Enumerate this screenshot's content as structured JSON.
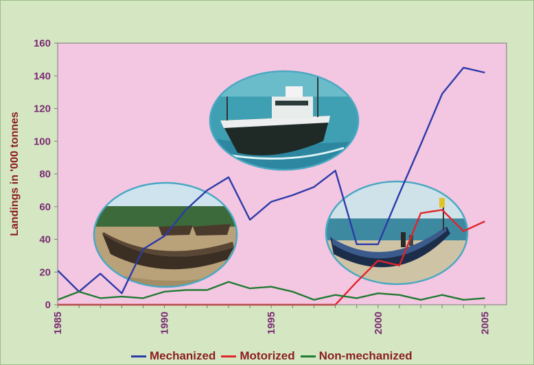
{
  "chart_data": {
    "type": "line",
    "ylabel": "Landings in '000 tonnes",
    "ylim": [
      0,
      160
    ],
    "yticks": [
      "0",
      "20",
      "40",
      "60",
      "80",
      "100",
      "120",
      "140",
      "160"
    ],
    "xlim": [
      1985,
      2005
    ],
    "xticks": [
      "1985",
      "1990",
      "1995",
      "2000",
      "2005"
    ],
    "legend_position": "bottom",
    "series": [
      {
        "name": "Mechanized",
        "color": "#2b3aa8",
        "x": [
          1985,
          1986,
          1987,
          1988,
          1989,
          1990,
          1991,
          1992,
          1993,
          1994,
          1995,
          1996,
          1997,
          1998,
          1999,
          2000,
          2001,
          2002,
          2003,
          2004,
          2005
        ],
        "y": [
          21,
          8,
          19,
          7,
          34,
          42,
          58,
          70,
          78,
          52,
          63,
          67,
          72,
          82,
          37,
          37,
          68,
          98,
          129,
          145,
          142
        ]
      },
      {
        "name": "Motorized",
        "color": "#e2232a",
        "x": [
          1985,
          1986,
          1987,
          1988,
          1989,
          1990,
          1991,
          1992,
          1993,
          1994,
          1995,
          1996,
          1997,
          1998,
          1999,
          2000,
          2001,
          2002,
          2003,
          2004,
          2005
        ],
        "y": [
          0,
          0,
          0,
          0,
          0,
          0,
          0,
          0,
          0,
          0,
          0,
          0,
          0,
          0,
          14,
          27,
          24,
          56,
          58,
          45,
          51
        ]
      },
      {
        "name": "Non-mechanized",
        "color": "#1f7a32",
        "x": [
          1985,
          1986,
          1987,
          1988,
          1989,
          1990,
          1991,
          1992,
          1993,
          1994,
          1995,
          1996,
          1997,
          1998,
          1999,
          2000,
          2001,
          2002,
          2003,
          2004,
          2005
        ],
        "y": [
          3,
          8,
          4,
          5,
          4,
          8,
          9,
          9,
          14,
          10,
          11,
          8,
          3,
          6,
          4,
          7,
          6,
          3,
          6,
          3,
          4
        ]
      }
    ]
  },
  "photos": [
    {
      "name": "mechanized-trawler-photo",
      "palette": {
        "sea": "#2f8fa6",
        "hull": "#1f2a26",
        "cabin": "#e8ecea"
      }
    },
    {
      "name": "non-mechanized-boat-photo",
      "palette": {
        "sky": "#cfe3ef",
        "trees": "#3c6a3a",
        "sand": "#b9a27a",
        "hull": "#3b2f24"
      }
    },
    {
      "name": "motorized-boats-photo",
      "palette": {
        "sky": "#cfe2ea",
        "sea": "#3d8aa0",
        "sand": "#cfc3a6",
        "hull": "#1c2d4a"
      }
    }
  ],
  "colors": {
    "plot_background": "#f3c6e1",
    "frame_background": "#d5e6c3",
    "tick_text": "#7a2b73",
    "label_text": "#8b1e1e"
  }
}
